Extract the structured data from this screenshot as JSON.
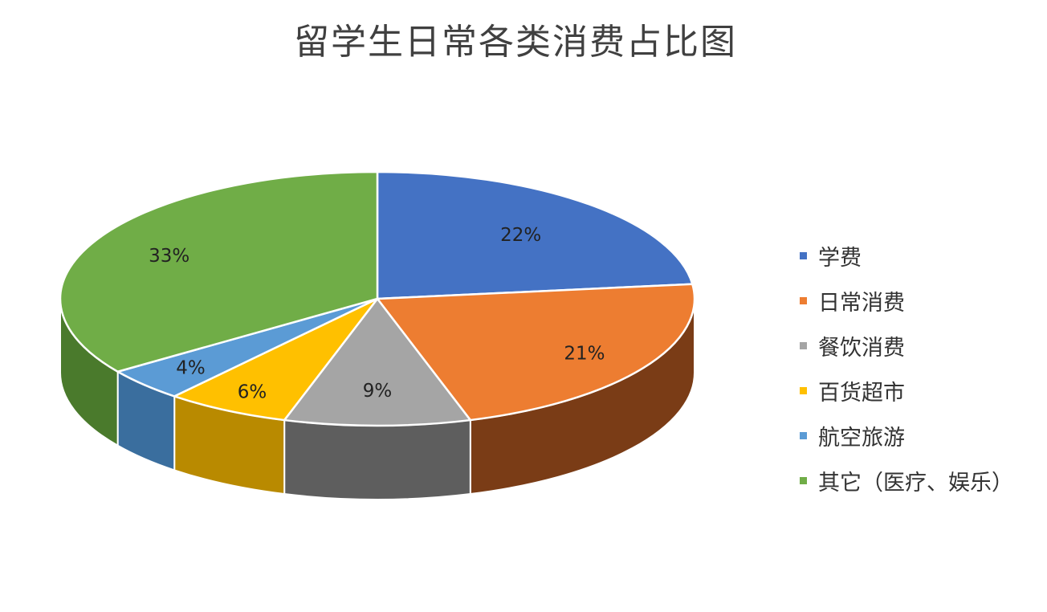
{
  "chart_data": {
    "type": "pie",
    "title": "留学生日常各类消费占比图",
    "slices": [
      {
        "label": "学费",
        "value": 22,
        "display": "22%",
        "color": "#4472C4",
        "side": "#2F5496"
      },
      {
        "label": "日常消费",
        "value": 21,
        "display": "21%",
        "color": "#ED7D31",
        "side": "#7A3C16"
      },
      {
        "label": "餐饮消费",
        "value": 9,
        "display": "9%",
        "color": "#A5A5A5",
        "side": "#5E5E5E"
      },
      {
        "label": "百货超市",
        "value": 6,
        "display": "6%",
        "color": "#FFC000",
        "side": "#B98A00"
      },
      {
        "label": "航空旅游",
        "value": 4,
        "display": "4%",
        "color": "#5B9BD5",
        "side": "#3A6E9E"
      },
      {
        "label": "其它（医疗、娱乐）",
        "value": 33,
        "display": "33%",
        "color": "#70AD47",
        "side": "#4A7A2C"
      }
    ],
    "legend_position": "right",
    "style": "3d"
  }
}
